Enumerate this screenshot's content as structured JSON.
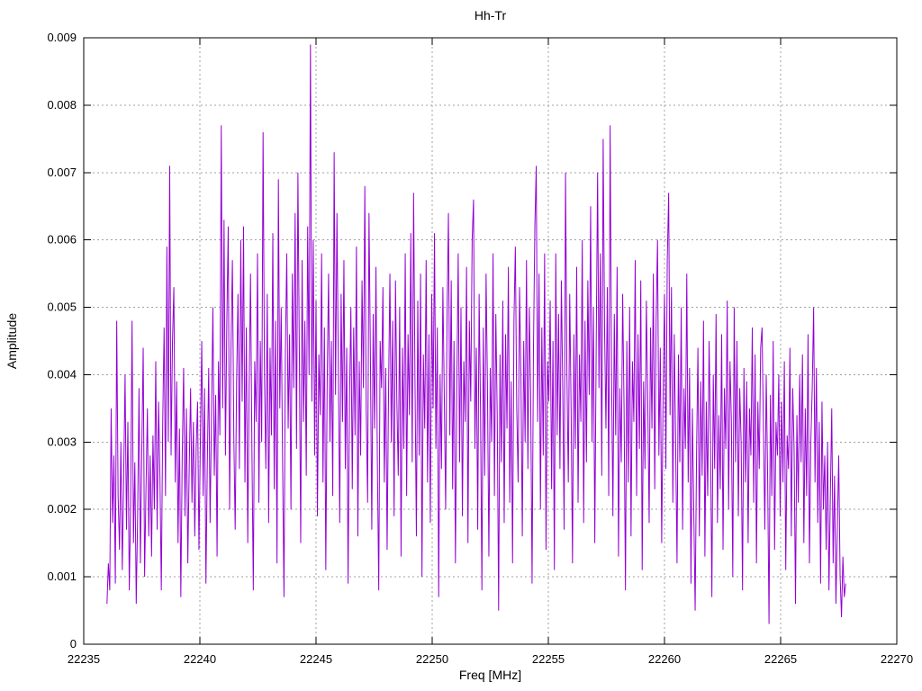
{
  "page": {
    "background": "#ffffff"
  },
  "chart_data": {
    "type": "line",
    "title": "Hh-Tr",
    "xlabel": "Freq [MHz]",
    "ylabel": "Amplitude",
    "xlim": [
      22235,
      22270
    ],
    "ylim": [
      0,
      0.009
    ],
    "xticks": [
      22235,
      22240,
      22245,
      22250,
      22255,
      22260,
      22265,
      22270
    ],
    "xtick_labels": [
      "22235",
      "22240",
      "22245",
      "22250",
      "22255",
      "22260",
      "22265",
      "22270"
    ],
    "yticks": [
      0,
      0.001,
      0.002,
      0.003,
      0.004,
      0.005,
      0.006,
      0.007,
      0.008,
      0.009
    ],
    "ytick_labels": [
      "0",
      "0.001",
      "0.002",
      "0.003",
      "0.004",
      "0.005",
      "0.006",
      "0.007",
      "0.008",
      "0.009"
    ],
    "grid": true,
    "grid_style": "dotted",
    "legend": "none",
    "line_color": "#9400d3",
    "grid_color": "#a0a0a0",
    "axis_color": "#000000",
    "notable_peaks": [
      {
        "freq": 22238.8,
        "amp": 0.0071
      },
      {
        "freq": 22241.0,
        "amp": 0.0077
      },
      {
        "freq": 22242.8,
        "amp": 0.0076
      },
      {
        "freq": 22244.9,
        "amp": 0.0089
      },
      {
        "freq": 22245.9,
        "amp": 0.0073
      },
      {
        "freq": 22249.3,
        "amp": 0.0067
      },
      {
        "freq": 22254.6,
        "amp": 0.0071
      },
      {
        "freq": 22257.5,
        "amp": 0.0075
      },
      {
        "freq": 22257.8,
        "amp": 0.0077
      },
      {
        "freq": 22260.3,
        "amp": 0.0068
      }
    ],
    "series": [
      {
        "name": "Hh-Tr",
        "x_start": 22236.0,
        "x_step": 0.06,
        "value_scale": 0.0001,
        "values": [
          6,
          12,
          8,
          35,
          18,
          28,
          9,
          48,
          22,
          14,
          30,
          11,
          25,
          40,
          17,
          33,
          8,
          21,
          48,
          15,
          27,
          6,
          19,
          38,
          12,
          29,
          44,
          10,
          23,
          35,
          16,
          28,
          13,
          31,
          20,
          42,
          17,
          36,
          25,
          8,
          33,
          47,
          22,
          59,
          30,
          71,
          28,
          45,
          53,
          24,
          39,
          15,
          32,
          7,
          28,
          41,
          19,
          35,
          12,
          26,
          38,
          21,
          33,
          16,
          29,
          36,
          14,
          30,
          45,
          22,
          38,
          9,
          27,
          41,
          18,
          34,
          50,
          25,
          37,
          13,
          42,
          31,
          77,
          35,
          63,
          28,
          48,
          62,
          20,
          44,
          57,
          31,
          17,
          39,
          52,
          26,
          60,
          36,
          62,
          24,
          47,
          15,
          38,
          55,
          29,
          8,
          42,
          33,
          58,
          21,
          45,
          30,
          76,
          40,
          26,
          52,
          18,
          44,
          31,
          61,
          23,
          48,
          12,
          69,
          35,
          50,
          27,
          7,
          43,
          58,
          32,
          46,
          20,
          55,
          38,
          64,
          29,
          70,
          44,
          15,
          57,
          33,
          48,
          25,
          62,
          40,
          89,
          36,
          60,
          28,
          51,
          19,
          43,
          34,
          58,
          24,
          47,
          11,
          39,
          55,
          30,
          45,
          22,
          73,
          37,
          64,
          41,
          18,
          52,
          33,
          57,
          26,
          44,
          9,
          36,
          50,
          23,
          47,
          31,
          59,
          16,
          42,
          28,
          54,
          38,
          68,
          35,
          21,
          64,
          43,
          17,
          49,
          32,
          56,
          27,
          8,
          45,
          38,
          53,
          24,
          41,
          14,
          37,
          55,
          30,
          48,
          19,
          54,
          36,
          25,
          50,
          13,
          44,
          29,
          58,
          22,
          46,
          34,
          61,
          27,
          67,
          39,
          16,
          51,
          28,
          55,
          10,
          43,
          32,
          57,
          24,
          46,
          18,
          52,
          35,
          61,
          29,
          47,
          7,
          40,
          26,
          53,
          37,
          20,
          49,
          64,
          31,
          54,
          23,
          45,
          12,
          38,
          58,
          27,
          50,
          19,
          42,
          33,
          56,
          15,
          48,
          36,
          60,
          66,
          29,
          44,
          17,
          52,
          35,
          8,
          47,
          25,
          55,
          38,
          13,
          41,
          30,
          58,
          22,
          49,
          34,
          5,
          43,
          27,
          51,
          18,
          46,
          32,
          56,
          21,
          39,
          12,
          48,
          59,
          35,
          24,
          53,
          40,
          16,
          45,
          30,
          57,
          26,
          50,
          37,
          9,
          44,
          62,
          71,
          33,
          55,
          20,
          47,
          28,
          58,
          14,
          42,
          36,
          51,
          23,
          45,
          11,
          58,
          31,
          49,
          26,
          54,
          38,
          17,
          70,
          40,
          24,
          52,
          35,
          12,
          46,
          29,
          56,
          21,
          43,
          33,
          60,
          18,
          48,
          27,
          54,
          37,
          65,
          30,
          50,
          15,
          44,
          70,
          38,
          58,
          25,
          75,
          47,
          32,
          53,
          22,
          77,
          41,
          19,
          49,
          31,
          56,
          13,
          38,
          27,
          52,
          35,
          8,
          45,
          24,
          50,
          16,
          42,
          33,
          57,
          22,
          46,
          29,
          54,
          11,
          39,
          26,
          51,
          36,
          18,
          47,
          32,
          55,
          23,
          48,
          60,
          28,
          44,
          15,
          37,
          52,
          26,
          57,
          67,
          34,
          53,
          21,
          46,
          30,
          12,
          43,
          27,
          50,
          17,
          38,
          29,
          55,
          24,
          41,
          9,
          35,
          20,
          5,
          28,
          44,
          16,
          39,
          25,
          48,
          13,
          36,
          22,
          45,
          31,
          7,
          40,
          26,
          49,
          18,
          34,
          23,
          46,
          14,
          38,
          29,
          51,
          20,
          42,
          33,
          10,
          50,
          27,
          45,
          19,
          38,
          30,
          8,
          41,
          24,
          39,
          15,
          35,
          28,
          47,
          21,
          43,
          12,
          36,
          26,
          44,
          47,
          32,
          17,
          40,
          25,
          3,
          37,
          22,
          45,
          14,
          33,
          28,
          40,
          19,
          36,
          24,
          42,
          11,
          31,
          26,
          44,
          16,
          38,
          29,
          6,
          34,
          21,
          40,
          27,
          43,
          15,
          35,
          22,
          46,
          12,
          30,
          38,
          50,
          24,
          41,
          18,
          33,
          9,
          36,
          20,
          28,
          14,
          30,
          8,
          22,
          35,
          12,
          25,
          6,
          17,
          28,
          10,
          4,
          13,
          7,
          9
        ]
      }
    ]
  }
}
